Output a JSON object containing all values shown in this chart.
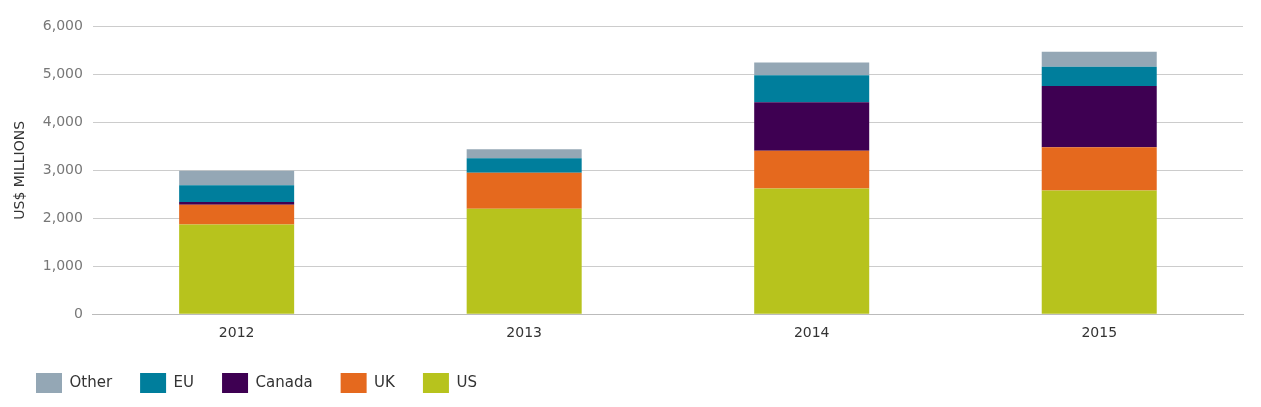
{
  "chart_data": {
    "type": "bar",
    "stacked": true,
    "ylabel": "US$ MILLIONS",
    "categories": [
      "2012",
      "2013",
      "2014",
      "2015"
    ],
    "series": [
      {
        "name": "US",
        "color": "#b7c31d",
        "values": [
          1870,
          2200,
          2620,
          2580
        ]
      },
      {
        "name": "UK",
        "color": "#e5691e",
        "values": [
          410,
          750,
          790,
          900
        ]
      },
      {
        "name": "Canada",
        "color": "#3e0052",
        "values": [
          60,
          0,
          1010,
          1280
        ]
      },
      {
        "name": "EU",
        "color": "#007e9c",
        "values": [
          350,
          300,
          560,
          400
        ]
      },
      {
        "name": "Other",
        "color": "#94a7b5",
        "values": [
          300,
          190,
          270,
          310
        ]
      }
    ],
    "ylim": [
      0,
      6000
    ],
    "yticks": [
      0,
      {
        "value": 1000,
        "label": "1,000"
      },
      {
        "value": 2000,
        "label": "2,000"
      },
      {
        "value": 3000,
        "label": "3,000"
      },
      {
        "value": 4000,
        "label": "4,000"
      },
      {
        "value": 5000,
        "label": "5,000"
      },
      {
        "value": 6000,
        "label": "6,000"
      }
    ],
    "grid": "y",
    "legend": "bottom left"
  }
}
